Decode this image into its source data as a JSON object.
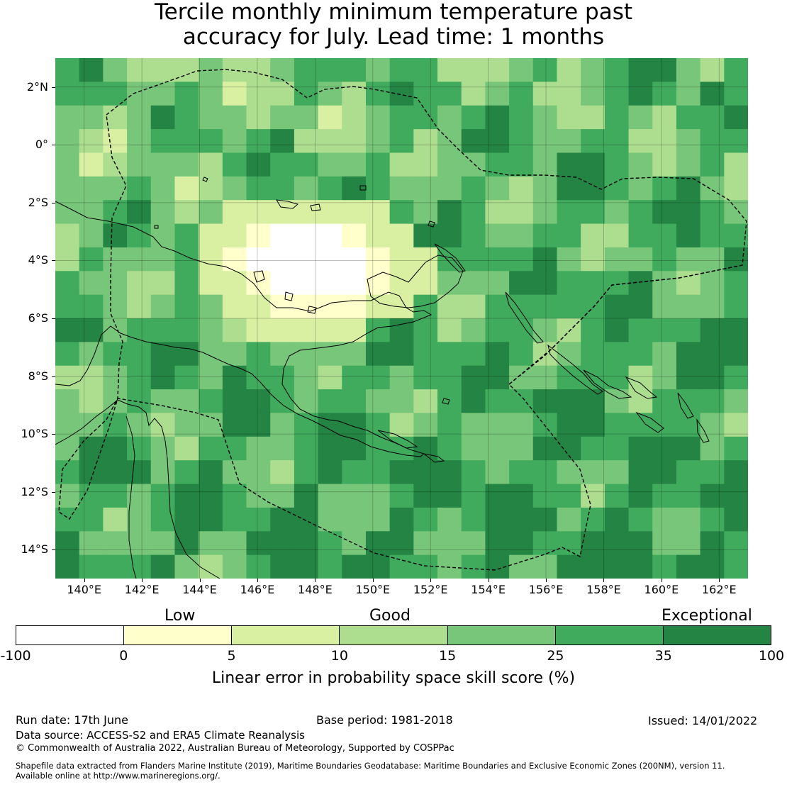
{
  "title": {
    "line1": "Tercile monthly minimum temperature past",
    "line2": "accuracy for July. Lead time: 1 months"
  },
  "map": {
    "lon_range": [
      139,
      163
    ],
    "lat_range": [
      -15,
      3
    ],
    "lat_ticks": [
      "2°N",
      "0°",
      "2°S",
      "4°S",
      "6°S",
      "8°S",
      "10°S",
      "12°S",
      "14°S"
    ],
    "lon_ticks": [
      "140°E",
      "142°E",
      "144°E",
      "146°E",
      "148°E",
      "150°E",
      "152°E",
      "154°E",
      "156°E",
      "158°E",
      "160°E",
      "162°E"
    ],
    "grid": true,
    "eez_boundary": "dashed",
    "coastline_color": "#000000"
  },
  "colorbar": {
    "category_labels": {
      "low": "Low",
      "good": "Good",
      "exceptional": "Exceptional"
    },
    "bounds": [
      "-100",
      "0",
      "5",
      "10",
      "15",
      "25",
      "35",
      "100"
    ],
    "colors": [
      "#ffffff",
      "#ffffcc",
      "#d9f0a3",
      "#addd8e",
      "#78c679",
      "#41ab5d",
      "#238443"
    ],
    "label": "Linear error in probability space skill score (%)"
  },
  "footer": {
    "run_date": "Run date: 17th June",
    "base_period": "Base period: 1981-2018",
    "issued": "Issued: 14/01/2022",
    "data_source": "Data source: ACCESS-S2 and ERA5 Climate Reanalysis",
    "copyright": "© Commonwealth of Australia 2022, Australian Bureau of Meteorology, Supported by COSPPac",
    "shapefile_line1": "Shapefile data extracted from Flanders Marine Institute (2019), Maritime Boundaries Geodatabase: Maritime Boundaries and Exclusive Economic Zones (200NM), version 11.",
    "shapefile_line2": "Available online at http://www.marineregions.org/."
  }
}
